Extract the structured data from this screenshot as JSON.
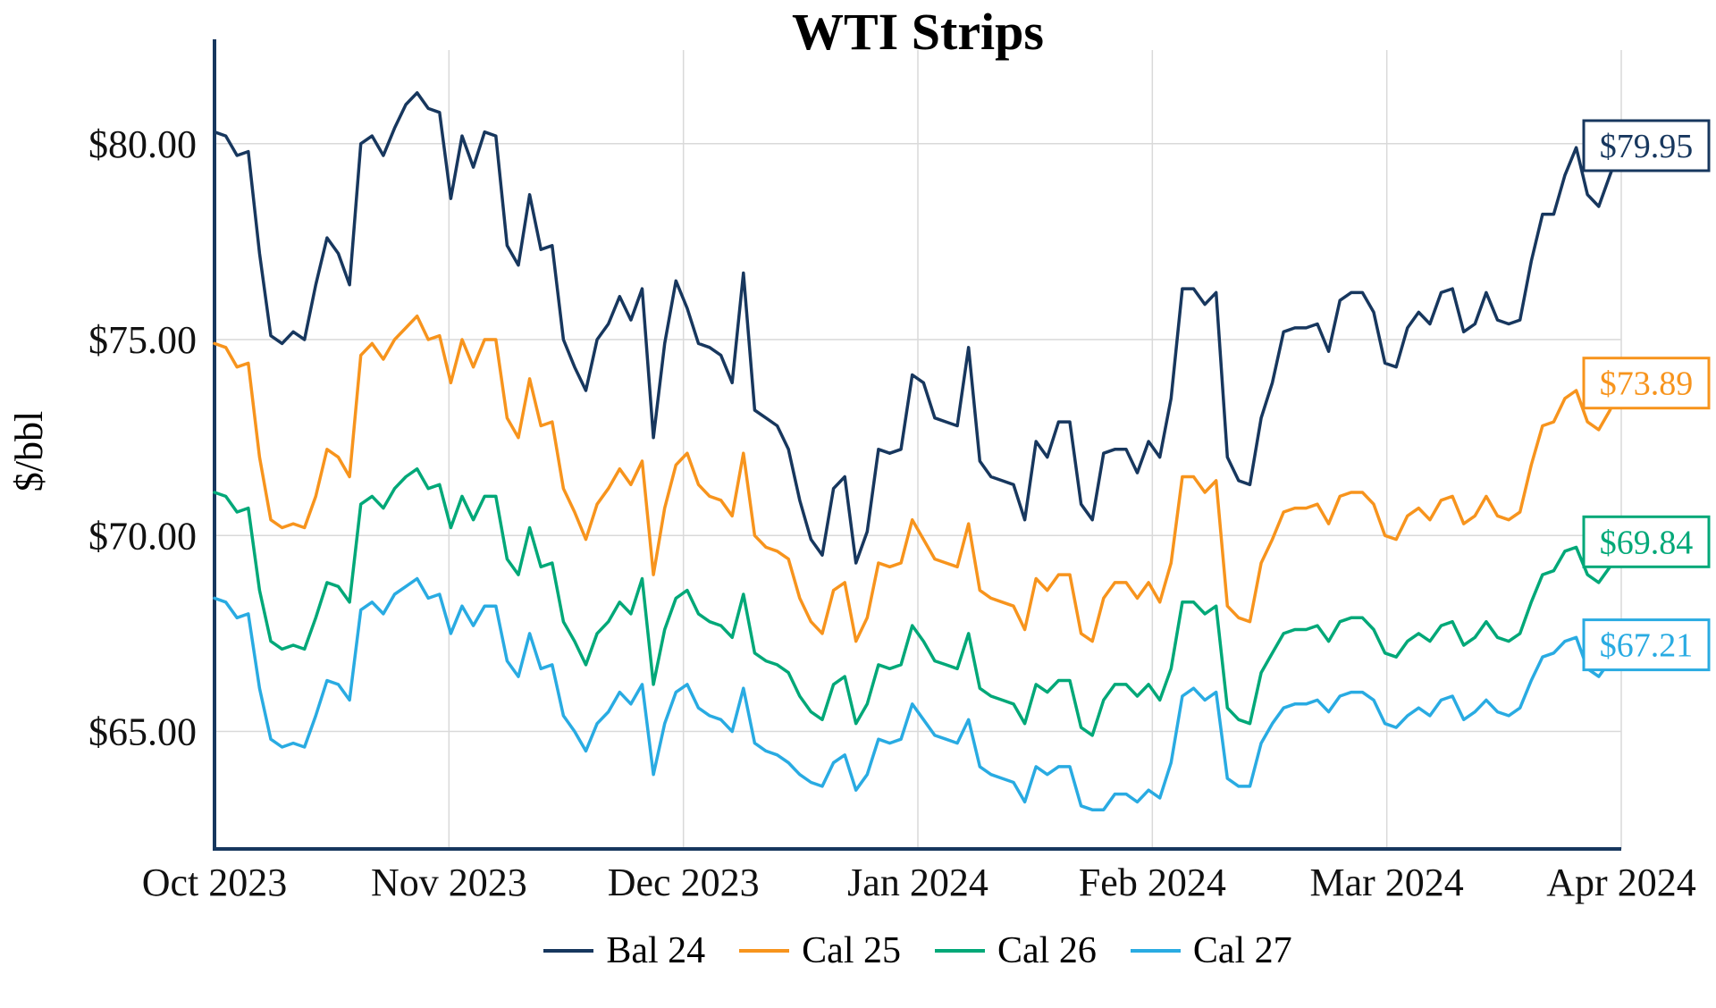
{
  "chart_data": {
    "type": "line",
    "title": "WTI Strips",
    "xlabel": "",
    "ylabel": "$/bbl",
    "x_tick_labels": [
      "Oct 2023",
      "Nov 2023",
      "Dec 2023",
      "Jan 2024",
      "Feb 2024",
      "Mar 2024",
      "Apr 2024"
    ],
    "y_ticks": [
      65,
      70,
      75,
      80
    ],
    "y_tick_labels": [
      "$65.00",
      "$70.00",
      "$75.00",
      "$80.00"
    ],
    "ylim": [
      62.0,
      82.3
    ],
    "grid": true,
    "legend_position": "bottom",
    "axis_color": "#17375e",
    "grid_color": "#d9d9d9",
    "series": [
      {
        "name": "Bal 24",
        "color": "#17375e",
        "end_label": "$79.95",
        "values": [
          80.3,
          80.2,
          79.7,
          79.8,
          77.2,
          75.1,
          74.9,
          75.2,
          75.0,
          76.4,
          77.6,
          77.2,
          76.4,
          80.0,
          80.2,
          79.7,
          80.4,
          81.0,
          81.3,
          80.9,
          80.8,
          78.6,
          80.2,
          79.4,
          80.3,
          80.2,
          77.4,
          76.9,
          78.7,
          77.3,
          77.4,
          75.0,
          74.3,
          73.7,
          75.0,
          75.4,
          76.1,
          75.5,
          76.3,
          72.5,
          74.9,
          76.5,
          75.8,
          74.9,
          74.8,
          74.6,
          73.9,
          76.7,
          73.2,
          73.0,
          72.8,
          72.2,
          70.9,
          69.9,
          69.5,
          71.2,
          71.5,
          69.3,
          70.1,
          72.2,
          72.1,
          72.2,
          74.1,
          73.9,
          73.0,
          72.9,
          72.8,
          74.8,
          71.9,
          71.5,
          71.4,
          71.3,
          70.4,
          72.4,
          72.0,
          72.9,
          72.9,
          70.8,
          70.4,
          72.1,
          72.2,
          72.2,
          71.6,
          72.4,
          72.0,
          73.5,
          76.3,
          76.3,
          75.9,
          76.2,
          72.0,
          71.4,
          71.3,
          73.0,
          73.9,
          75.2,
          75.3,
          75.3,
          75.4,
          74.7,
          76.0,
          76.2,
          76.2,
          75.7,
          74.4,
          74.3,
          75.3,
          75.7,
          75.4,
          76.2,
          76.3,
          75.2,
          75.4,
          76.2,
          75.5,
          75.4,
          75.5,
          77.0,
          78.2,
          78.2,
          79.2,
          79.9,
          78.7,
          78.4,
          79.2,
          79.95
        ]
      },
      {
        "name": "Cal 25",
        "color": "#f7941d",
        "end_label": "$73.89",
        "values": [
          74.9,
          74.8,
          74.3,
          74.4,
          72.0,
          70.4,
          70.2,
          70.3,
          70.2,
          71.0,
          72.2,
          72.0,
          71.5,
          74.6,
          74.9,
          74.5,
          75.0,
          75.3,
          75.6,
          75.0,
          75.1,
          73.9,
          75.0,
          74.3,
          75.0,
          75.0,
          73.0,
          72.5,
          74.0,
          72.8,
          72.9,
          71.2,
          70.6,
          69.9,
          70.8,
          71.2,
          71.7,
          71.3,
          71.9,
          69.0,
          70.7,
          71.8,
          72.1,
          71.3,
          71.0,
          70.9,
          70.5,
          72.1,
          70.0,
          69.7,
          69.6,
          69.4,
          68.4,
          67.8,
          67.5,
          68.6,
          68.8,
          67.3,
          67.9,
          69.3,
          69.2,
          69.3,
          70.4,
          69.9,
          69.4,
          69.3,
          69.2,
          70.3,
          68.6,
          68.4,
          68.3,
          68.2,
          67.6,
          68.9,
          68.6,
          69.0,
          69.0,
          67.5,
          67.3,
          68.4,
          68.8,
          68.8,
          68.4,
          68.8,
          68.3,
          69.3,
          71.5,
          71.5,
          71.1,
          71.4,
          68.2,
          67.9,
          67.8,
          69.3,
          69.9,
          70.6,
          70.7,
          70.7,
          70.8,
          70.3,
          71.0,
          71.1,
          71.1,
          70.8,
          70.0,
          69.9,
          70.5,
          70.7,
          70.4,
          70.9,
          71.0,
          70.3,
          70.5,
          71.0,
          70.5,
          70.4,
          70.6,
          71.8,
          72.8,
          72.9,
          73.5,
          73.7,
          72.9,
          72.7,
          73.2,
          73.89
        ]
      },
      {
        "name": "Cal 26",
        "color": "#00a878",
        "end_label": "$69.84",
        "values": [
          71.1,
          71.0,
          70.6,
          70.7,
          68.6,
          67.3,
          67.1,
          67.2,
          67.1,
          67.9,
          68.8,
          68.7,
          68.3,
          70.8,
          71.0,
          70.7,
          71.2,
          71.5,
          71.7,
          71.2,
          71.3,
          70.2,
          71.0,
          70.4,
          71.0,
          71.0,
          69.4,
          69.0,
          70.2,
          69.2,
          69.3,
          67.8,
          67.3,
          66.7,
          67.5,
          67.8,
          68.3,
          68.0,
          68.9,
          66.2,
          67.6,
          68.4,
          68.6,
          68.0,
          67.8,
          67.7,
          67.4,
          68.5,
          67.0,
          66.8,
          66.7,
          66.5,
          65.9,
          65.5,
          65.3,
          66.2,
          66.4,
          65.2,
          65.7,
          66.7,
          66.6,
          66.7,
          67.7,
          67.3,
          66.8,
          66.7,
          66.6,
          67.5,
          66.1,
          65.9,
          65.8,
          65.7,
          65.2,
          66.2,
          66.0,
          66.3,
          66.3,
          65.1,
          64.9,
          65.8,
          66.2,
          66.2,
          65.9,
          66.2,
          65.8,
          66.6,
          68.3,
          68.3,
          68.0,
          68.2,
          65.6,
          65.3,
          65.2,
          66.5,
          67.0,
          67.5,
          67.6,
          67.6,
          67.7,
          67.3,
          67.8,
          67.9,
          67.9,
          67.6,
          67.0,
          66.9,
          67.3,
          67.5,
          67.3,
          67.7,
          67.8,
          67.2,
          67.4,
          67.8,
          67.4,
          67.3,
          67.5,
          68.3,
          69.0,
          69.1,
          69.6,
          69.7,
          69.0,
          68.8,
          69.2,
          69.84
        ]
      },
      {
        "name": "Cal 27",
        "color": "#29abe2",
        "end_label": "$67.21",
        "values": [
          68.4,
          68.3,
          67.9,
          68.0,
          66.1,
          64.8,
          64.6,
          64.7,
          64.6,
          65.4,
          66.3,
          66.2,
          65.8,
          68.1,
          68.3,
          68.0,
          68.5,
          68.7,
          68.9,
          68.4,
          68.5,
          67.5,
          68.2,
          67.7,
          68.2,
          68.2,
          66.8,
          66.4,
          67.5,
          66.6,
          66.7,
          65.4,
          65.0,
          64.5,
          65.2,
          65.5,
          66.0,
          65.7,
          66.2,
          63.9,
          65.2,
          66.0,
          66.2,
          65.6,
          65.4,
          65.3,
          65.0,
          66.1,
          64.7,
          64.5,
          64.4,
          64.2,
          63.9,
          63.7,
          63.6,
          64.2,
          64.4,
          63.5,
          63.9,
          64.8,
          64.7,
          64.8,
          65.7,
          65.3,
          64.9,
          64.8,
          64.7,
          65.3,
          64.1,
          63.9,
          63.8,
          63.7,
          63.2,
          64.1,
          63.9,
          64.1,
          64.1,
          63.1,
          63.0,
          63.0,
          63.4,
          63.4,
          63.2,
          63.5,
          63.3,
          64.2,
          65.9,
          66.1,
          65.8,
          66.0,
          63.8,
          63.6,
          63.6,
          64.7,
          65.2,
          65.6,
          65.7,
          65.7,
          65.8,
          65.5,
          65.9,
          66.0,
          66.0,
          65.8,
          65.2,
          65.1,
          65.4,
          65.6,
          65.4,
          65.8,
          65.9,
          65.3,
          65.5,
          65.8,
          65.5,
          65.4,
          65.6,
          66.3,
          66.9,
          67.0,
          67.3,
          67.4,
          66.6,
          66.4,
          66.8,
          67.21
        ]
      }
    ]
  }
}
